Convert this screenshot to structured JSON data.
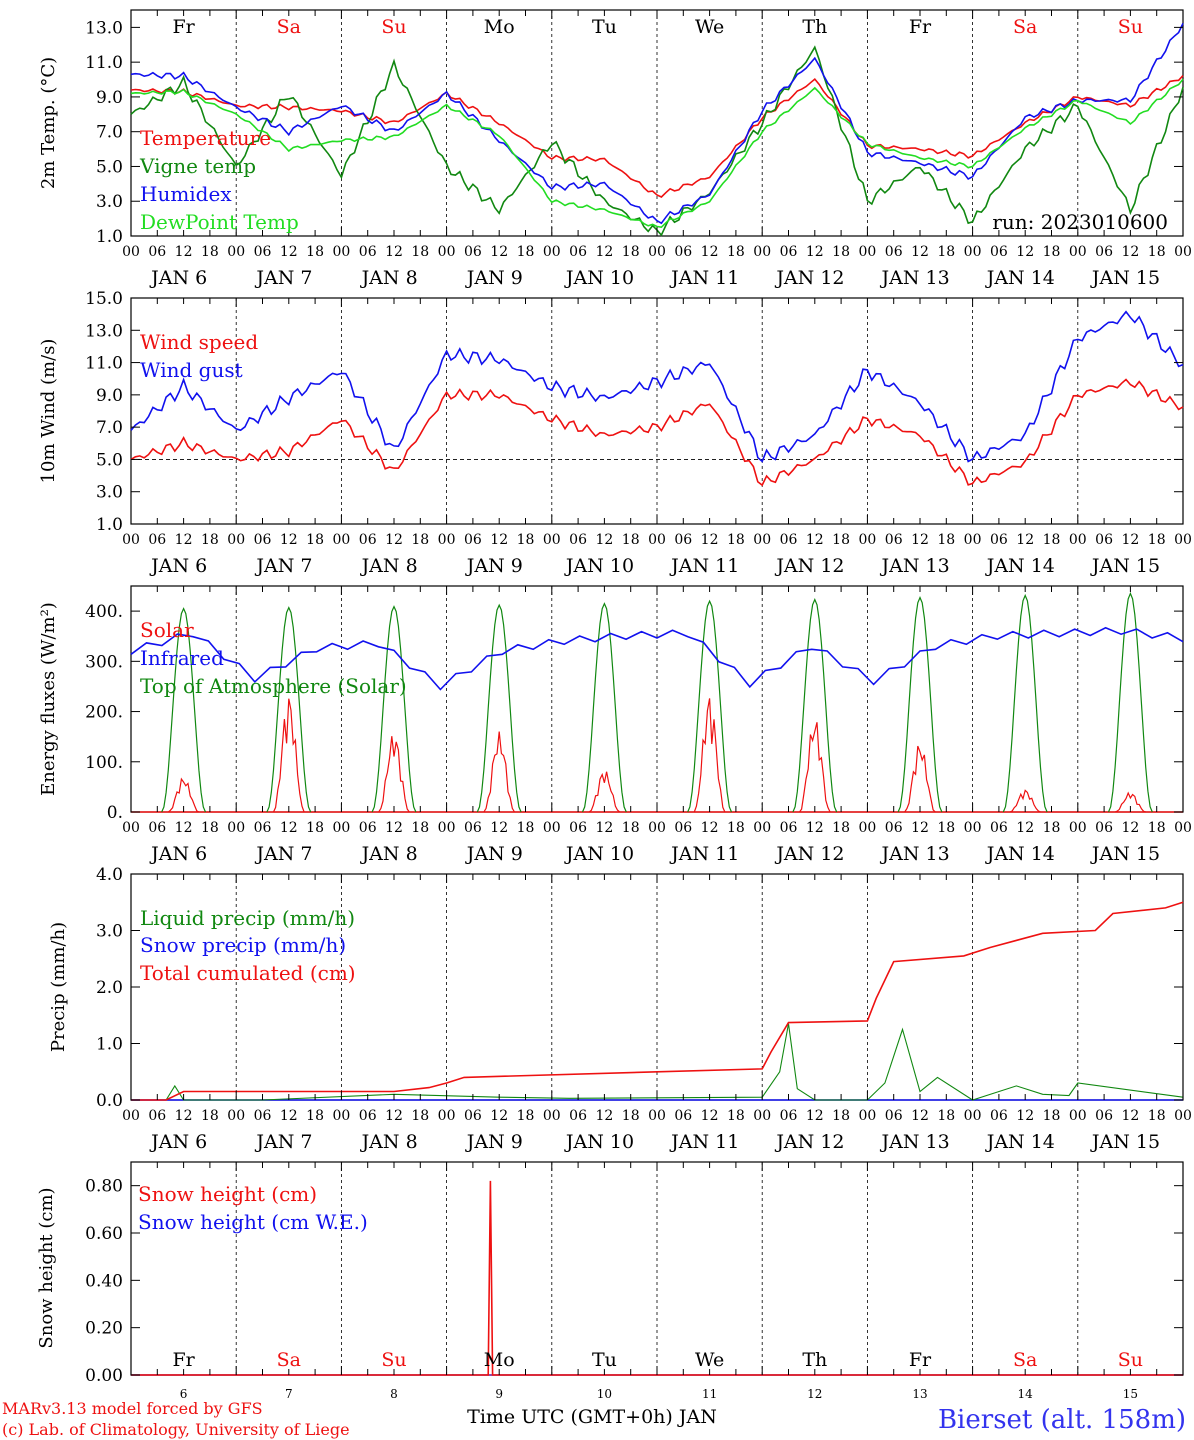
{
  "chart_data": [
    {
      "type": "line",
      "ylabel": "2m Temp. (°C)",
      "ylim": [
        1.0,
        14.0
      ],
      "yticks": [
        "1.0",
        "3.0",
        "5.0",
        "7.0",
        "9.0",
        "11.0",
        "13.0"
      ],
      "day_names": [
        "Fr",
        "Sa",
        "Su",
        "Mo",
        "Tu",
        "We",
        "Th",
        "Fr",
        "Sa",
        "Su"
      ],
      "annotation": "run: 2023010600",
      "series": [
        {
          "name": "Temperature",
          "color": "#ee1111",
          "x_hours": [
            0,
            12,
            24,
            36,
            48,
            60,
            72,
            84,
            96,
            108,
            120,
            132,
            144,
            156,
            168,
            180,
            192,
            204,
            216,
            228,
            240
          ],
          "values": [
            9.4,
            9.3,
            8.5,
            8.4,
            8.2,
            7.5,
            9.2,
            7.5,
            5.5,
            5.4,
            3.3,
            4.4,
            7.8,
            10.0,
            6.2,
            6.0,
            5.6,
            7.5,
            9.0,
            8.5,
            10.2
          ]
        },
        {
          "name": "Vigne temp",
          "color": "#118811",
          "x_hours": [
            0,
            12,
            24,
            36,
            48,
            60,
            72,
            84,
            96,
            108,
            120,
            132,
            144,
            156,
            168,
            180,
            192,
            204,
            216,
            228,
            240
          ],
          "values": [
            8.0,
            9.8,
            5.0,
            9.2,
            4.5,
            10.8,
            5.0,
            2.5,
            6.4,
            3.0,
            1.2,
            3.5,
            7.5,
            11.8,
            3.0,
            5.0,
            1.8,
            6.0,
            8.5,
            2.5,
            9.5
          ]
        },
        {
          "name": "Humidex",
          "color": "#1111ee",
          "x_hours": [
            0,
            12,
            24,
            36,
            48,
            60,
            72,
            84,
            96,
            108,
            120,
            132,
            144,
            156,
            168,
            180,
            192,
            204,
            216,
            228,
            240
          ],
          "values": [
            10.3,
            10.2,
            8.4,
            7.0,
            8.5,
            7.0,
            9.2,
            6.5,
            3.8,
            4.0,
            1.8,
            3.4,
            8.2,
            11.2,
            5.8,
            5.2,
            4.4,
            7.8,
            8.8,
            8.8,
            13.2
          ]
        },
        {
          "name": "DewPoint Temp",
          "color": "#22dd22",
          "x_hours": [
            0,
            12,
            24,
            36,
            48,
            60,
            72,
            84,
            96,
            108,
            120,
            132,
            144,
            156,
            168,
            180,
            192,
            204,
            216,
            228,
            240
          ],
          "values": [
            9.2,
            9.3,
            8.0,
            6.0,
            6.5,
            6.7,
            8.5,
            6.8,
            3.0,
            2.5,
            1.5,
            3.0,
            7.0,
            9.5,
            6.3,
            5.5,
            5.0,
            7.2,
            8.8,
            7.5,
            10.0
          ]
        }
      ]
    },
    {
      "type": "line",
      "ylabel": "10m Wind (m/s)",
      "ylim": [
        1.0,
        15.0
      ],
      "yticks": [
        "1.0",
        "3.0",
        "5.0",
        "7.0",
        "9.0",
        "11.0",
        "13.0",
        "15.0"
      ],
      "reference_line": 5.0,
      "series": [
        {
          "name": "Wind speed",
          "color": "#ee1111",
          "x_hours": [
            0,
            12,
            24,
            36,
            48,
            60,
            72,
            84,
            96,
            108,
            120,
            132,
            144,
            156,
            168,
            180,
            192,
            204,
            216,
            228,
            240
          ],
          "values": [
            5.0,
            6.0,
            5.0,
            5.5,
            7.5,
            4.2,
            9.0,
            9.0,
            7.5,
            6.5,
            7.0,
            8.5,
            3.5,
            5.0,
            7.5,
            6.5,
            3.5,
            4.8,
            9.0,
            9.8,
            8.2
          ]
        },
        {
          "name": "Wind gust",
          "color": "#1111ee",
          "x_hours": [
            0,
            12,
            24,
            36,
            48,
            60,
            72,
            84,
            96,
            108,
            120,
            132,
            144,
            156,
            168,
            180,
            192,
            204,
            216,
            228,
            240
          ],
          "values": [
            6.8,
            9.5,
            6.8,
            8.8,
            10.5,
            5.5,
            11.5,
            11.2,
            9.5,
            8.8,
            9.8,
            11.0,
            5.0,
            6.5,
            10.5,
            8.5,
            5.0,
            6.5,
            12.5,
            14.0,
            10.8
          ]
        }
      ]
    },
    {
      "type": "line",
      "ylabel": "Energy fluxes (W/m²)",
      "ylim": [
        0,
        450
      ],
      "yticks": [
        "0.",
        "100.",
        "200.",
        "300.",
        "400."
      ],
      "solar_peaks": [
        70,
        235,
        160,
        160,
        85,
        235,
        190,
        140,
        45,
        40
      ],
      "toa_peaks": [
        405,
        407,
        409,
        412,
        415,
        420,
        423,
        427,
        431,
        435
      ],
      "infrared_values": [
        320,
        355,
        265,
        325,
        335,
        250,
        320,
        340,
        350,
        355,
        255,
        330,
        260,
        330,
        350,
        355,
        360,
        345
      ],
      "series": [
        {
          "name": "Solar",
          "color": "#ee1111"
        },
        {
          "name": "Infrared",
          "color": "#1111ee"
        },
        {
          "name": "Top of Atmosphere (Solar)",
          "color": "#118811"
        }
      ]
    },
    {
      "type": "line",
      "ylabel": "Precip (mm/h)",
      "ylim": [
        0.0,
        4.0
      ],
      "yticks": [
        "0.0",
        "1.0",
        "2.0",
        "3.0",
        "4.0"
      ],
      "series": [
        {
          "name": "Liquid precip (mm/h)",
          "color": "#118811",
          "x_hours": [
            0,
            8,
            10,
            12,
            30,
            60,
            84,
            100,
            144,
            148,
            150,
            152,
            156,
            168,
            172,
            176,
            180,
            184,
            192,
            202,
            208,
            214,
            216,
            240
          ],
          "values": [
            0,
            0,
            0.25,
            0,
            0,
            0.1,
            0.05,
            0.03,
            0.05,
            0.5,
            1.35,
            0.2,
            0,
            0,
            0.3,
            1.25,
            0.15,
            0.4,
            0,
            0.25,
            0.1,
            0.08,
            0.3,
            0.05
          ]
        },
        {
          "name": "Snow precip (mm/h)",
          "color": "#1111ee",
          "x_hours": [
            0,
            240
          ],
          "values": [
            0,
            0
          ]
        },
        {
          "name": "Total cumulated (cm)",
          "color": "#ee1111",
          "x_hours": [
            0,
            8,
            12,
            60,
            68,
            72,
            76,
            120,
            144,
            146,
            150,
            168,
            170,
            174,
            190,
            196,
            208,
            220,
            224,
            236,
            240
          ],
          "values": [
            0,
            0,
            0.15,
            0.15,
            0.22,
            0.3,
            0.4,
            0.5,
            0.55,
            0.85,
            1.37,
            1.4,
            1.8,
            2.45,
            2.55,
            2.7,
            2.95,
            3.0,
            3.3,
            3.4,
            3.5
          ]
        }
      ]
    },
    {
      "type": "line",
      "ylabel": "Snow height (cm)",
      "ylim": [
        0.0,
        0.9
      ],
      "yticks": [
        "0.00",
        "0.20",
        "0.40",
        "0.60",
        "0.80"
      ],
      "day_numbers": [
        "6",
        "7",
        "8",
        "9",
        "10",
        "11",
        "12",
        "13",
        "14",
        "15"
      ],
      "series": [
        {
          "name": "Snow height (cm)",
          "color": "#ee1111",
          "x_hours": [
            0,
            81.5,
            82,
            82.5,
            240
          ],
          "values": [
            0,
            0,
            0.82,
            0,
            0
          ]
        },
        {
          "name": "Snow height (cm W.E.)",
          "color": "#1111ee",
          "x_hours": [
            0,
            240
          ],
          "values": [
            0,
            0
          ]
        }
      ]
    }
  ],
  "time_axis": {
    "hour_ticks": [
      "00",
      "06",
      "12",
      "18"
    ],
    "dates": [
      "JAN  6",
      "JAN  7",
      "JAN  8",
      "JAN  9",
      "JAN 10",
      "JAN 11",
      "JAN 12",
      "JAN 13",
      "JAN 14",
      "JAN 15"
    ]
  },
  "footer": {
    "credit_1": "MARv3.13 model forced by GFS",
    "credit_2": "(c) Lab. of Climatology, University of Liege",
    "xlabel": "Time UTC (GMT+0h) JAN",
    "station": "Bierset (alt. 158m)"
  },
  "colors": {
    "weekend": "#ee1111",
    "weekday": "#000000",
    "station": "#3333ee"
  }
}
